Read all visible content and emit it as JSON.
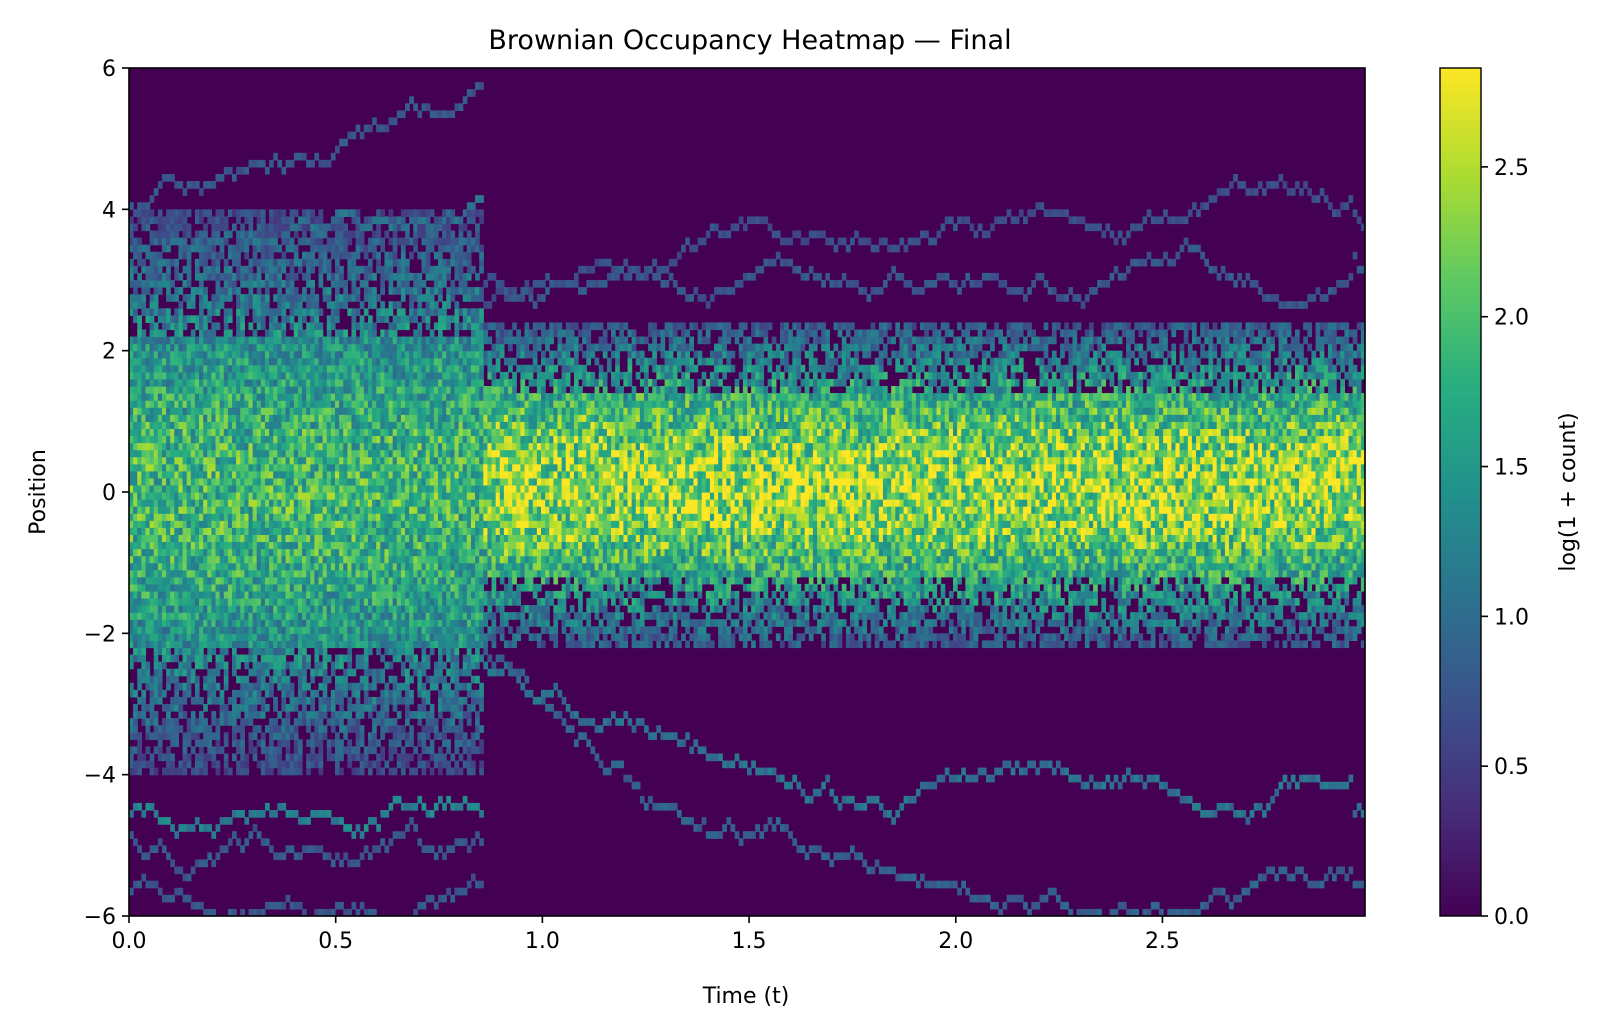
{
  "chart_data": {
    "type": "heatmap",
    "title": "Brownian Occupancy Heatmap — Final",
    "xlabel": "Time (t)",
    "ylabel": "Position",
    "xlim": [
      0.0,
      2.99
    ],
    "ylim": [
      -6,
      6
    ],
    "x_ticks": [
      0.0,
      0.5,
      1.0,
      1.5,
      2.0,
      2.5
    ],
    "x_tick_labels": [
      "0.0",
      "0.5",
      "1.0",
      "1.5",
      "2.0",
      "2.5"
    ],
    "y_ticks": [
      -6,
      -4,
      -2,
      0,
      2,
      4,
      6
    ],
    "y_tick_labels": [
      "−6",
      "−4",
      "−2",
      "0",
      "2",
      "4",
      "6"
    ],
    "colormap": "viridis",
    "colorbar": {
      "label": "log(1 + count)",
      "range": [
        0.0,
        2.83
      ],
      "ticks": [
        0.0,
        0.5,
        1.0,
        1.5,
        2.0,
        2.5
      ],
      "tick_labels": [
        "0.0",
        "0.5",
        "1.0",
        "1.5",
        "2.0",
        "2.5"
      ]
    },
    "grid": false,
    "time_bins": 300,
    "position_bins": 120,
    "time_bin_width": 0.01,
    "position_bin_width": 0.1,
    "regime_change_t": 0.86,
    "segments": [
      {
        "t_start": 0.0,
        "t_end": 0.86,
        "center": 0.0,
        "core_sd": 2.1,
        "max_value": 2.2,
        "outlier_tracks": [
          {
            "p0": 4.1,
            "p1": 5.4,
            "value": 0.8
          },
          {
            "p0": 3.4,
            "p1": 4.5,
            "value": 1.1
          },
          {
            "p0": -4.6,
            "p1": -4.4,
            "value": 1.3
          },
          {
            "p0": -5.6,
            "p1": -6.0,
            "value": 0.8
          },
          {
            "p0": -4.9,
            "p1": -5.2,
            "value": 0.8
          }
        ]
      },
      {
        "t_start": 0.86,
        "t_end": 2.99,
        "center": 0.1,
        "core_sd": 1.2,
        "max_value": 2.8,
        "outlier_tracks": [
          {
            "p0": 2.6,
            "p1": 3.9,
            "value": 0.7
          },
          {
            "p0": -2.3,
            "p1": -5.5,
            "value": 0.9
          },
          {
            "p0": -2.4,
            "p1": -4.5,
            "value": 1.1
          },
          {
            "p0": 2.9,
            "p1": 3.2,
            "value": 0.8
          }
        ]
      }
    ]
  }
}
